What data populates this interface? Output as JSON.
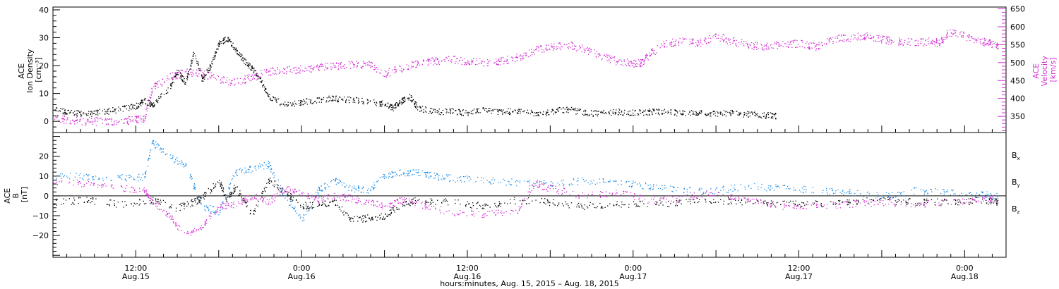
{
  "colors": {
    "black": "#000000",
    "magenta": "#d22ed2",
    "blue": "#1f8ee6"
  },
  "chart_data": [
    {
      "type": "scatter",
      "panel": "top",
      "ylabel_left": [
        "ACE",
        "Ion Density",
        "[cm⁻³]"
      ],
      "ylabel_right": [
        "ACE",
        "Velocity",
        "[km/s]"
      ],
      "ylim_left": [
        -4,
        41
      ],
      "yticks_left": [
        "0",
        "10",
        "20",
        "30",
        "40"
      ],
      "ylim_right": [
        305,
        655
      ],
      "yticks_right": [
        "350",
        "400",
        "450",
        "500",
        "550",
        "600",
        "650"
      ],
      "series": [
        {
          "axis": "left",
          "color": "#000000",
          "points": [
            [
              0.0,
              4.5
            ],
            [
              0.1,
              3.2
            ],
            [
              0.2,
              2.8
            ],
            [
              0.3,
              3.5
            ],
            [
              0.4,
              4.4
            ],
            [
              0.5,
              5.5
            ],
            [
              0.55,
              7.5
            ],
            [
              0.6,
              6
            ],
            [
              0.7,
              12
            ],
            [
              0.75,
              18
            ],
            [
              0.8,
              14
            ],
            [
              0.85,
              25
            ],
            [
              0.9,
              15
            ],
            [
              0.95,
              20
            ],
            [
              1.0,
              28
            ],
            [
              1.05,
              30
            ],
            [
              1.1,
              26
            ],
            [
              1.15,
              22
            ],
            [
              1.2,
              19
            ],
            [
              1.25,
              15
            ],
            [
              1.3,
              9
            ],
            [
              1.4,
              6
            ],
            [
              1.5,
              7
            ],
            [
              1.6,
              8
            ],
            [
              1.7,
              8.3
            ],
            [
              1.8,
              7.8
            ],
            [
              1.9,
              7.2
            ],
            [
              2.0,
              6.5
            ],
            [
              2.05,
              5
            ],
            [
              2.1,
              7.5
            ],
            [
              2.15,
              9
            ],
            [
              2.2,
              5
            ],
            [
              2.3,
              3.5
            ],
            [
              2.4,
              3.8
            ],
            [
              2.5,
              3.2
            ],
            [
              2.6,
              4.2
            ],
            [
              2.7,
              3.5
            ],
            [
              2.8,
              3.8
            ],
            [
              2.9,
              3
            ],
            [
              3.0,
              3.5
            ],
            [
              3.1,
              4.5
            ],
            [
              3.2,
              3.2
            ],
            [
              3.3,
              2.8
            ],
            [
              3.4,
              3.6
            ],
            [
              3.5,
              3.2
            ],
            [
              3.6,
              3.5
            ],
            [
              3.7,
              3.4
            ],
            [
              3.8,
              3.1
            ],
            [
              3.9,
              3.3
            ],
            [
              4.0,
              2.8
            ],
            [
              4.1,
              3.1
            ],
            [
              4.2,
              2.6
            ],
            [
              4.3,
              2.3
            ],
            [
              4.36,
              2.1
            ]
          ]
        },
        {
          "axis": "right",
          "color": "#d22ed2",
          "points": [
            [
              0.0,
              345
            ],
            [
              0.1,
              340
            ],
            [
              0.2,
              338
            ],
            [
              0.3,
              337
            ],
            [
              0.4,
              338
            ],
            [
              0.5,
              342
            ],
            [
              0.55,
              345
            ],
            [
              0.6,
              430
            ],
            [
              0.7,
              460
            ],
            [
              0.8,
              475
            ],
            [
              0.9,
              470
            ],
            [
              1.0,
              455
            ],
            [
              1.1,
              445
            ],
            [
              1.2,
              460
            ],
            [
              1.3,
              475
            ],
            [
              1.4,
              480
            ],
            [
              1.5,
              482
            ],
            [
              1.6,
              488
            ],
            [
              1.7,
              490
            ],
            [
              1.8,
              495
            ],
            [
              1.9,
              498
            ],
            [
              2.0,
              470
            ],
            [
              2.1,
              485
            ],
            [
              2.2,
              500
            ],
            [
              2.3,
              505
            ],
            [
              2.4,
              510
            ],
            [
              2.5,
              505
            ],
            [
              2.6,
              500
            ],
            [
              2.7,
              505
            ],
            [
              2.8,
              515
            ],
            [
              2.9,
              535
            ],
            [
              3.0,
              545
            ],
            [
              3.1,
              550
            ],
            [
              3.2,
              540
            ],
            [
              3.3,
              520
            ],
            [
              3.4,
              505
            ],
            [
              3.5,
              500
            ],
            [
              3.55,
              500
            ],
            [
              3.6,
              525
            ],
            [
              3.7,
              555
            ],
            [
              3.8,
              560
            ],
            [
              3.9,
              555
            ],
            [
              4.0,
              575
            ],
            [
              4.1,
              560
            ],
            [
              4.2,
              550
            ],
            [
              4.3,
              545
            ],
            [
              4.4,
              550
            ],
            [
              4.5,
              555
            ],
            [
              4.6,
              545
            ],
            [
              4.7,
              565
            ],
            [
              4.8,
              570
            ],
            [
              4.9,
              575
            ],
            [
              5.0,
              565
            ],
            [
              5.1,
              560
            ],
            [
              5.2,
              557
            ],
            [
              5.3,
              560
            ],
            [
              5.35,
              555
            ],
            [
              5.4,
              585
            ],
            [
              5.5,
              575
            ],
            [
              5.6,
              560
            ],
            [
              5.65,
              555
            ],
            [
              5.7,
              550
            ]
          ]
        }
      ]
    },
    {
      "type": "scatter",
      "panel": "bottom",
      "ylabel_left": [
        "ACE",
        "B",
        "[nT]"
      ],
      "ylim": [
        -31,
        32
      ],
      "yticks": [
        "20",
        "10",
        "0",
        "−10",
        "−20"
      ],
      "legend_placement": "right",
      "series": [
        {
          "name": "B",
          "sub": "x",
          "color": "#000000",
          "points": [
            [
              0.0,
              -3
            ],
            [
              0.2,
              -2
            ],
            [
              0.4,
              -4
            ],
            [
              0.6,
              -2
            ],
            [
              0.75,
              -6
            ],
            [
              0.85,
              -3
            ],
            [
              0.9,
              -1
            ],
            [
              1.0,
              8
            ],
            [
              1.05,
              -2
            ],
            [
              1.1,
              5
            ],
            [
              1.2,
              -10
            ],
            [
              1.3,
              8
            ],
            [
              1.4,
              2
            ],
            [
              1.5,
              -5
            ],
            [
              1.6,
              -4
            ],
            [
              1.7,
              -3
            ],
            [
              1.8,
              -12
            ],
            [
              1.9,
              -11
            ],
            [
              2.0,
              -10
            ],
            [
              2.1,
              -4
            ],
            [
              2.2,
              -2
            ],
            [
              2.4,
              -3
            ],
            [
              2.6,
              -5
            ],
            [
              2.8,
              -2
            ],
            [
              3.0,
              -3
            ],
            [
              3.2,
              -5
            ],
            [
              3.4,
              -4
            ],
            [
              3.6,
              -4
            ],
            [
              3.8,
              -3
            ],
            [
              4.0,
              -2
            ],
            [
              4.2,
              -3
            ],
            [
              4.4,
              -4
            ],
            [
              4.6,
              -4
            ],
            [
              4.8,
              -3
            ],
            [
              5.0,
              -2
            ],
            [
              5.2,
              -3
            ],
            [
              5.4,
              -3
            ],
            [
              5.6,
              -2
            ],
            [
              5.7,
              -3
            ]
          ]
        },
        {
          "name": "B",
          "sub": "y",
          "color": "#1f8ee6",
          "points": [
            [
              0.0,
              10
            ],
            [
              0.2,
              10
            ],
            [
              0.4,
              9.5
            ],
            [
              0.55,
              9.5
            ],
            [
              0.6,
              27
            ],
            [
              0.7,
              20
            ],
            [
              0.8,
              15
            ],
            [
              0.9,
              -5
            ],
            [
              1.0,
              -8
            ],
            [
              1.1,
              12
            ],
            [
              1.2,
              14
            ],
            [
              1.3,
              16
            ],
            [
              1.4,
              0
            ],
            [
              1.5,
              -12
            ],
            [
              1.6,
              3
            ],
            [
              1.7,
              8
            ],
            [
              1.8,
              4
            ],
            [
              1.9,
              3
            ],
            [
              2.0,
              10
            ],
            [
              2.1,
              12
            ],
            [
              2.2,
              12
            ],
            [
              2.3,
              10
            ],
            [
              2.4,
              9
            ],
            [
              2.6,
              8
            ],
            [
              2.8,
              7
            ],
            [
              3.0,
              6
            ],
            [
              3.2,
              8
            ],
            [
              3.4,
              7
            ],
            [
              3.6,
              5
            ],
            [
              3.8,
              3
            ],
            [
              4.0,
              3
            ],
            [
              4.2,
              5
            ],
            [
              4.4,
              4
            ],
            [
              4.6,
              3
            ],
            [
              4.8,
              2
            ],
            [
              5.0,
              0
            ],
            [
              5.2,
              3
            ],
            [
              5.4,
              2
            ],
            [
              5.6,
              1
            ],
            [
              5.7,
              0
            ]
          ]
        },
        {
          "name": "B",
          "sub": "z",
          "color": "#d22ed2",
          "points": [
            [
              0.0,
              7
            ],
            [
              0.2,
              6
            ],
            [
              0.4,
              4
            ],
            [
              0.55,
              3
            ],
            [
              0.6,
              -3
            ],
            [
              0.7,
              -10
            ],
            [
              0.8,
              -20
            ],
            [
              0.9,
              -15
            ],
            [
              1.0,
              -5
            ],
            [
              1.1,
              -4
            ],
            [
              1.2,
              0
            ],
            [
              1.3,
              -3
            ],
            [
              1.4,
              4
            ],
            [
              1.5,
              1
            ],
            [
              1.6,
              -2
            ],
            [
              1.7,
              0
            ],
            [
              1.8,
              -1
            ],
            [
              1.9,
              -3
            ],
            [
              2.0,
              -5
            ],
            [
              2.1,
              -2
            ],
            [
              2.2,
              -4
            ],
            [
              2.4,
              -8
            ],
            [
              2.6,
              -9
            ],
            [
              2.8,
              -8
            ],
            [
              2.9,
              6
            ],
            [
              3.0,
              4
            ],
            [
              3.2,
              0
            ],
            [
              3.4,
              2
            ],
            [
              3.6,
              -2
            ],
            [
              3.8,
              -1
            ],
            [
              4.0,
              2
            ],
            [
              4.2,
              -2
            ],
            [
              4.4,
              -5
            ],
            [
              4.6,
              -5
            ],
            [
              4.8,
              -4
            ],
            [
              5.0,
              -3
            ],
            [
              5.2,
              -4
            ],
            [
              5.4,
              -3
            ],
            [
              5.6,
              -2
            ],
            [
              5.7,
              -1
            ]
          ]
        }
      ]
    }
  ],
  "xaxis": {
    "domain_days": [
      0,
      5.75
    ],
    "ticks": [
      {
        "x": 0.5,
        "time": "12:00",
        "date": "Aug.15"
      },
      {
        "x": 1.5,
        "time": "0:00",
        "date": "Aug.16"
      },
      {
        "x": 2.5,
        "time": "12:00",
        "date": "Aug.16"
      },
      {
        "x": 3.5,
        "time": "0:00",
        "date": "Aug.17"
      },
      {
        "x": 4.5,
        "time": "12:00",
        "date": "Aug.17"
      },
      {
        "x": 5.5,
        "time": "0:00",
        "date": "Aug.18"
      }
    ],
    "title": "hours:minutes, Aug. 15, 2015 – Aug. 18, 2015"
  }
}
